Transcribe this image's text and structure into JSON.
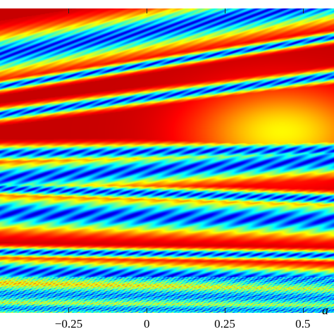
{
  "chart_data": {
    "type": "heatmap",
    "xlabel": "a",
    "ylabel": "",
    "title": "",
    "x_ticks": [
      "−0.25",
      "0",
      "0.25",
      "0.5"
    ],
    "x_tick_values": [
      -0.25,
      0,
      0.25,
      0.5
    ],
    "xlim": [
      -0.47,
      0.6
    ],
    "colormap": "jet",
    "colors": {
      "low": "#00008f",
      "mid_low": "#0070ff",
      "mid": "#30ffd0",
      "mid_high": "#ffe000",
      "high": "#ff2000",
      "max": "#8a0000"
    },
    "grid": false,
    "legend": "none"
  }
}
